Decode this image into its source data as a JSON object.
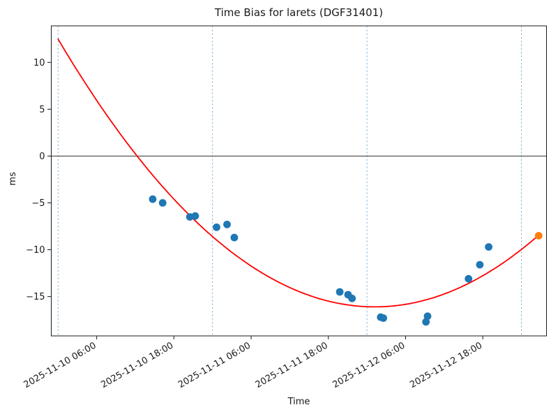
{
  "chart_data": {
    "type": "scatter",
    "title": "Time Bias for larets (DGF31401)",
    "xlabel": "Time",
    "ylabel": "ms",
    "time_origin": "2025-11-10 00:00",
    "xlim_hours_from_origin": [
      -1.06,
      75.9
    ],
    "ylim": [
      -19.2,
      13.9
    ],
    "y_ticks": [
      10,
      5,
      0,
      -5,
      -10,
      -15
    ],
    "x_tick_labels": [
      "2025-11-10 06:00",
      "2025-11-10 18:00",
      "2025-11-11 06:00",
      "2025-11-11 18:00",
      "2025-11-12 06:00",
      "2025-11-12 18:00"
    ],
    "day_gridlines": [
      "2025-11-10 00:00",
      "2025-11-11 00:00",
      "2025-11-12 00:00",
      "2025-11-13 00:00"
    ],
    "grid": "vertical dashed lines at day boundaries",
    "zero_line": true,
    "legend": "none",
    "colors": {
      "measurement_points": "#1f77b4",
      "latest_point": "#ff7f0e",
      "fit_curve": "#ff0000",
      "gridline": "rgba(31,119,180,0.6)",
      "zero_line": "#1a1a1a"
    },
    "series": [
      {
        "name": "bias-measurement",
        "color": "#1f77b4",
        "points": [
          {
            "time": "2025-11-10 14:42",
            "ms": -4.6
          },
          {
            "time": "2025-11-10 16:15",
            "ms": -5.0
          },
          {
            "time": "2025-11-10 20:29",
            "ms": -6.5
          },
          {
            "time": "2025-11-10 21:19",
            "ms": -6.4
          },
          {
            "time": "2025-11-11 00:38",
            "ms": -7.6
          },
          {
            "time": "2025-11-11 02:15",
            "ms": -7.3
          },
          {
            "time": "2025-11-11 03:23",
            "ms": -8.7
          },
          {
            "time": "2025-11-11 19:46",
            "ms": -14.5
          },
          {
            "time": "2025-11-11 21:04",
            "ms": -14.8
          },
          {
            "time": "2025-11-11 21:41",
            "ms": -15.2
          },
          {
            "time": "2025-11-12 02:08",
            "ms": -17.2
          },
          {
            "time": "2025-11-12 02:33",
            "ms": -17.3
          },
          {
            "time": "2025-11-12 09:10",
            "ms": -17.7
          },
          {
            "time": "2025-11-12 09:25",
            "ms": -17.1
          },
          {
            "time": "2025-11-12 15:47",
            "ms": -13.1
          },
          {
            "time": "2025-11-12 17:32",
            "ms": -11.6
          },
          {
            "time": "2025-11-12 18:55",
            "ms": -9.7
          }
        ]
      },
      {
        "name": "latest-measurement",
        "color": "#ff7f0e",
        "points": [
          {
            "time": "2025-11-13 02:41",
            "ms": -8.5
          }
        ]
      }
    ],
    "fit_curve": {
      "name": "quadratic-fit",
      "color": "#ff0000",
      "coeff_ms_per_hour2": 0.0118,
      "vertex_time": "2025-11-12 01:13",
      "vertex_ms": -16.1,
      "start_time": "2025-11-10 00:00",
      "end_time": "2025-11-13 02:41"
    }
  }
}
